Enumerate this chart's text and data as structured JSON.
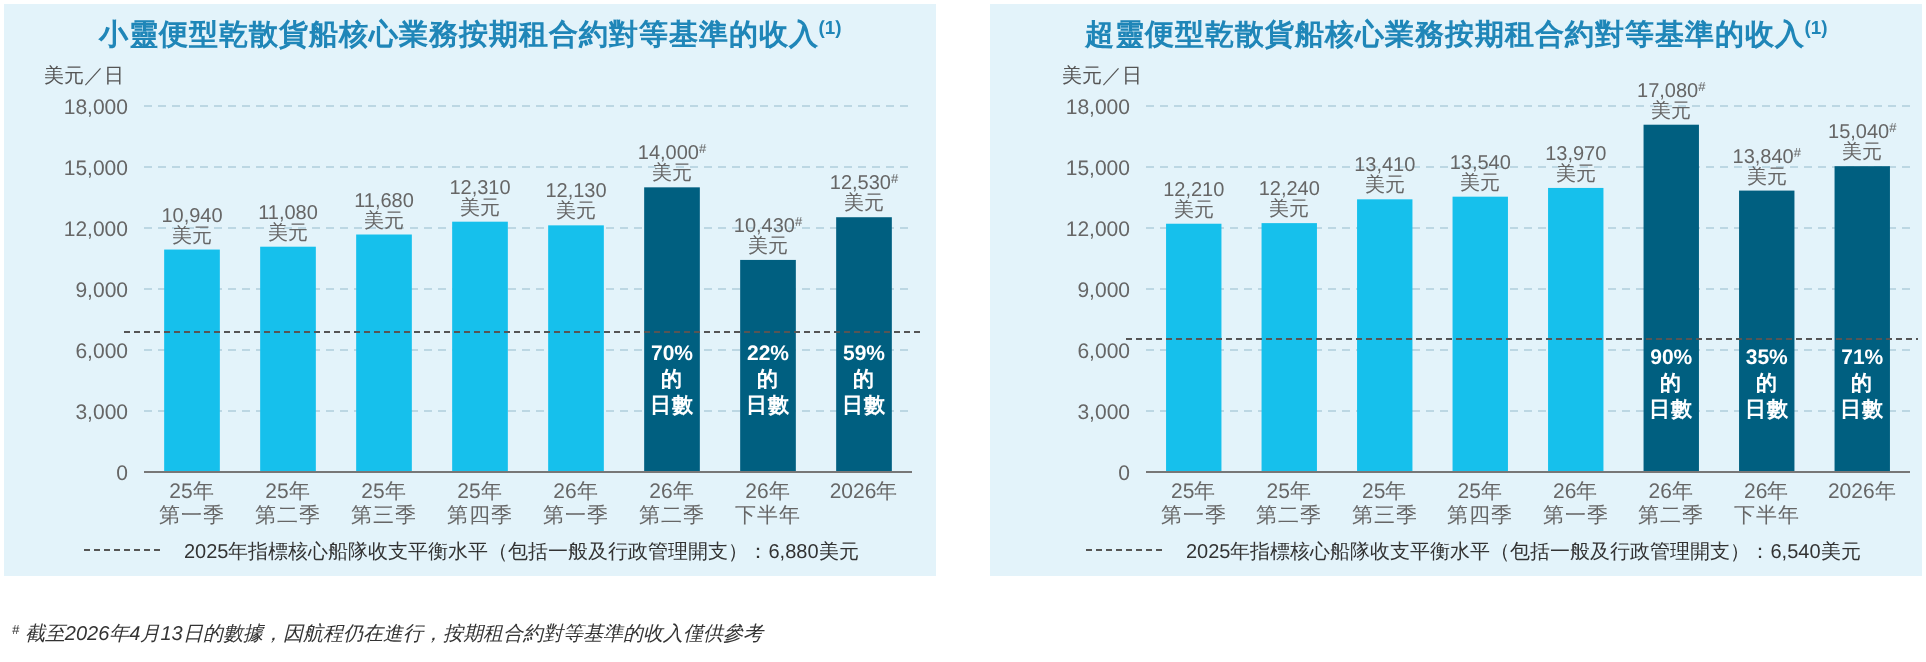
{
  "chart_data": [
    {
      "type": "bar",
      "title": "小靈便型乾散貨船核心業務按期租合約對等基準的收入$^{(1)}$",
      "ylabel": "美元／日",
      "categories": [
        "25年第一季",
        "25年第二季",
        "25年第三季",
        "25年第四季",
        "26年第一季",
        "26年第二季",
        "26年下半年",
        "2026年"
      ],
      "values": [
        10940,
        11080,
        11680,
        12310,
        12130,
        14000,
        10430,
        12530
      ],
      "colors": [
        "#16c0ec",
        "#16c0ec",
        "#16c0ec",
        "#16c0ec",
        "#16c0ec",
        "#005f80",
        "#005f80",
        "#005f80"
      ],
      "value_labels": [
        "10,940美元",
        "11,080美元",
        "11,680美元",
        "12,310美元",
        "12,130美元",
        "14,000$^{#}$美元",
        "10,430$^{#}$美元",
        "12,530$^{#}$美元"
      ],
      "ylim": [
        0,
        18000
      ],
      "yticks": [
        0,
        {
          "value": 3000,
          "label": "3,000"
        },
        {
          "value": 6000,
          "label": "6,000"
        },
        {
          "value": 9000,
          "label": "9,000"
        },
        {
          "value": 12000,
          "label": "12,000"
        },
        {
          "value": 15000,
          "label": "15,000"
        },
        {
          "value": 18000,
          "label": "18,000"
        }
      ],
      "grid": "y",
      "ref_lines": [
        {
          "axis": "y",
          "value": 6880,
          "label": "2025年指標核心船隊收支平衡水平（包括一般及行政管理開支）：6,880美元",
          "color": "#555555",
          "line_style": "dashed"
        }
      ],
      "annotations": [
        "70%的日數",
        "22%的日數",
        "59%的日數"
      ]
    },
    {
      "type": "bar",
      "title": "超靈便型乾散貨船核心業務按期租合約對等基準的收入$^{(1)}$",
      "ylabel": "美元／日",
      "categories": [
        "25年第一季",
        "25年第二季",
        "25年第三季",
        "25年第四季",
        "26年第一季",
        "26年第二季",
        "26年下半年",
        "2026年"
      ],
      "values": [
        12210,
        12240,
        13410,
        13540,
        13970,
        17080,
        13840,
        15040
      ],
      "colors": [
        "#16c0ec",
        "#16c0ec",
        "#16c0ec",
        "#16c0ec",
        "#16c0ec",
        "#005f80",
        "#005f80",
        "#005f80"
      ],
      "value_labels": [
        "12,210美元",
        "12,240美元",
        "13,410美元",
        "13,540美元",
        "13,970美元",
        "17,080$^{#}$美元",
        "13,840$^{#}$美元",
        "15,040$^{#}$美元"
      ],
      "ylim": [
        0,
        18000
      ],
      "yticks": [
        0,
        {
          "value": 3000,
          "label": "3,000"
        },
        {
          "value": 6000,
          "label": "6,000"
        },
        {
          "value": 9000,
          "label": "9,000"
        },
        {
          "value": 12000,
          "label": "12,000"
        },
        {
          "value": 15000,
          "label": "15,000"
        },
        {
          "value": 18000,
          "label": "18,000"
        }
      ],
      "grid": "y",
      "ref_lines": [
        {
          "axis": "y",
          "value": 6540,
          "label": "2025年指標核心船隊收支平衡水平（包括一般及行政管理開支）：6,540美元",
          "color": "#555555",
          "line_style": "dashed"
        }
      ],
      "annotations": [
        "90%的日數",
        "35%的日數",
        "71%的日數",
        "$^{#}$  截至2026年4月13日的數據，因航程仍在進行，按期租合約對等基準的收入僅供參考"
      ]
    }
  ]
}
